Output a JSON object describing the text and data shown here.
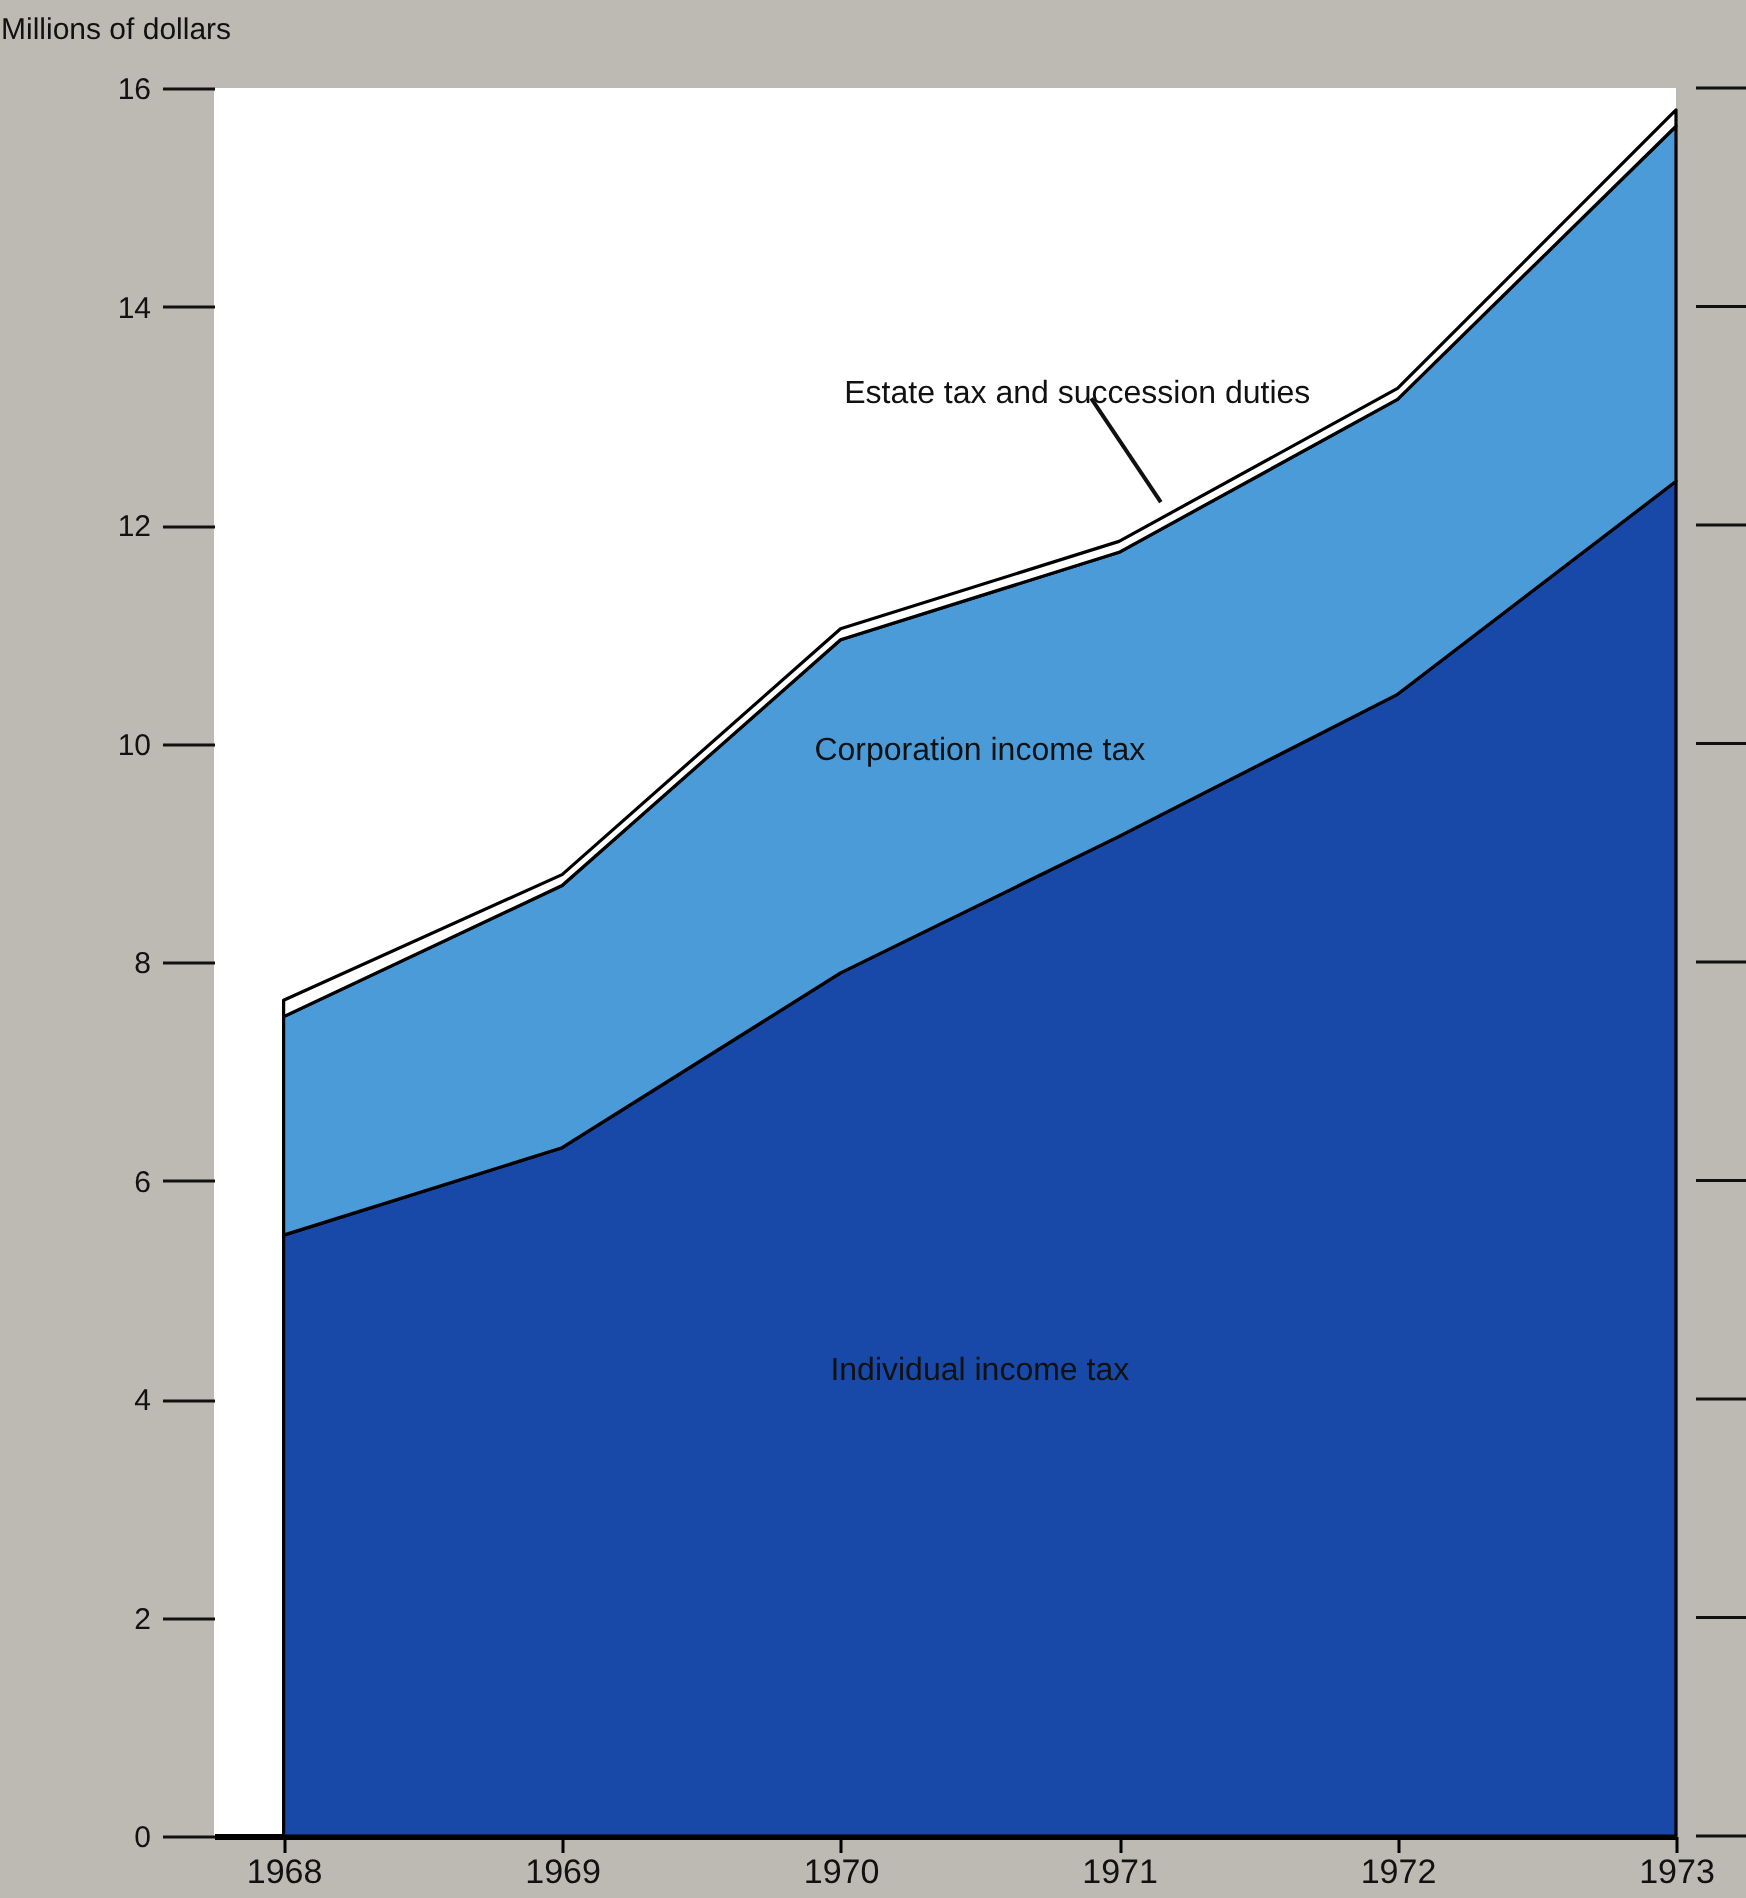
{
  "chart_data": {
    "type": "area",
    "stacked": true,
    "ylabel": "Millions of dollars",
    "x": [
      1968,
      1969,
      1970,
      1971,
      1972,
      1973
    ],
    "xlim": [
      1967.75,
      1973
    ],
    "xticks": [
      1968,
      1969,
      1970,
      1971,
      1972,
      1973
    ],
    "ylim": [
      0,
      16
    ],
    "yticks": [
      0,
      2,
      4,
      6,
      8,
      10,
      12,
      14,
      16
    ],
    "series": [
      {
        "name": "Individual income tax",
        "color": "#1848a8",
        "values": [
          5.5,
          6.3,
          7.9,
          9.15,
          10.45,
          12.4
        ]
      },
      {
        "name": "Corporation income tax",
        "color": "#4b9bd9",
        "values": [
          2.0,
          2.4,
          3.05,
          2.6,
          2.7,
          3.25
        ]
      },
      {
        "name": "Estate tax and succession duties",
        "color": "#ffffff",
        "values": [
          0.15,
          0.1,
          0.1,
          0.1,
          0.1,
          0.15
        ]
      }
    ],
    "grid": false,
    "legend": false
  }
}
